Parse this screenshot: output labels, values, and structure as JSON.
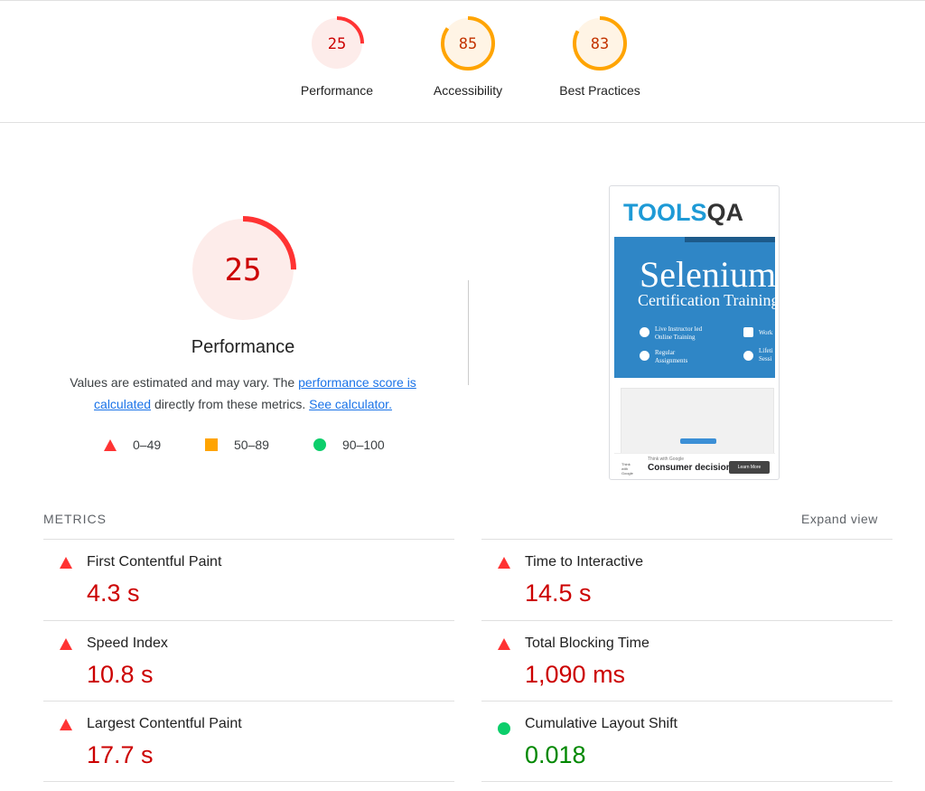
{
  "summary": {
    "gauges": [
      {
        "score": "25",
        "label": "Performance",
        "color": "#ff3333",
        "bg": "#fdecea",
        "text_color": "#c00",
        "fraction": 0.25
      },
      {
        "score": "85",
        "label": "Accessibility",
        "color": "#ffa400",
        "bg": "#fff4e5",
        "text_color": "#c33300",
        "fraction": 0.85
      },
      {
        "score": "83",
        "label": "Best Practices",
        "color": "#ffa400",
        "bg": "#fff4e5",
        "text_color": "#c33300",
        "fraction": 0.83
      }
    ]
  },
  "performance": {
    "score": "25",
    "fraction": 0.25,
    "title": "Performance",
    "desc_prefix": "Values are estimated and may vary. The ",
    "desc_link1": "performance score is calculated",
    "desc_middle": " directly from these metrics. ",
    "desc_link2": "See calculator.",
    "legend": [
      {
        "range": "0–49",
        "shape": "triangle",
        "color": "#ff3333"
      },
      {
        "range": "50–89",
        "shape": "square",
        "color": "#ffa400"
      },
      {
        "range": "90–100",
        "shape": "circle",
        "color": "#0cce6b"
      }
    ]
  },
  "screenshot": {
    "logo_tools": "TOOLS",
    "logo_qa": "QA",
    "banner_title": "Selenium",
    "banner_subtitle": "Certification Training",
    "feature1": "Live Instructor led\nOnline Training",
    "feature2": "Regular\nAssignments",
    "feature3": "Work",
    "feature4": "Lifeti\nSessi",
    "ad_small": "Think with Google",
    "ad_headline": "Consumer decisions",
    "ad_side": "Think\nwith\nGoogle",
    "ad_button": "Learn More"
  },
  "metrics": {
    "header": "METRICS",
    "expand": "Expand view",
    "items": [
      {
        "name": "First Contentful Paint",
        "value": "4.3 s",
        "status": "fail"
      },
      {
        "name": "Time to Interactive",
        "value": "14.5 s",
        "status": "fail"
      },
      {
        "name": "Speed Index",
        "value": "10.8 s",
        "status": "fail"
      },
      {
        "name": "Total Blocking Time",
        "value": "1,090 ms",
        "status": "fail"
      },
      {
        "name": "Largest Contentful Paint",
        "value": "17.7 s",
        "status": "fail"
      },
      {
        "name": "Cumulative Layout Shift",
        "value": "0.018",
        "status": "pass"
      }
    ]
  }
}
